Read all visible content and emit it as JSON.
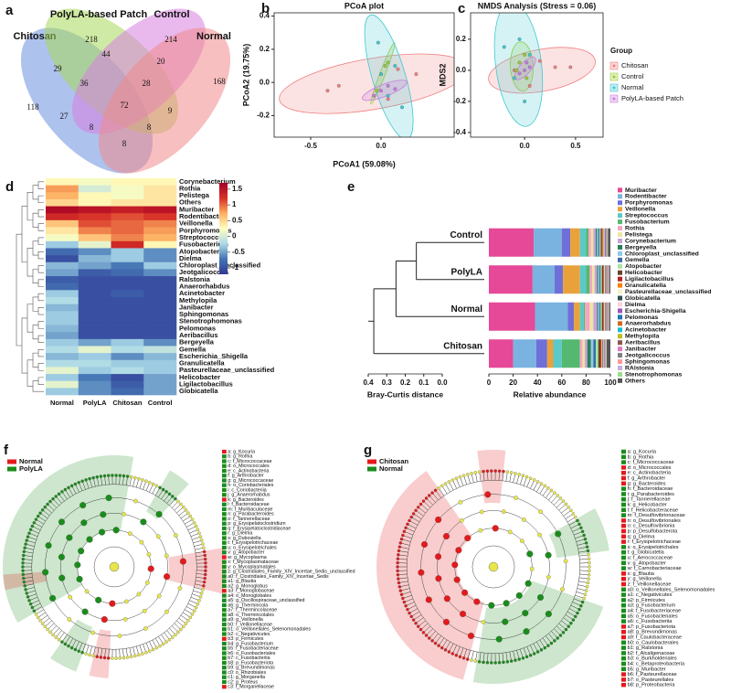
{
  "chart_data": [
    {
      "type": "venn",
      "panel": "a",
      "sets": [
        "Chitosan",
        "PolyLA-based Patch",
        "Control",
        "Normal"
      ],
      "colors": [
        "#6c8fe0",
        "#a8d85a",
        "#d77fe0",
        "#f08a8a"
      ],
      "values": [
        118,
        218,
        214,
        168,
        29,
        44,
        20,
        36,
        28,
        27,
        72,
        9,
        8,
        8,
        8
      ]
    },
    {
      "type": "scatter",
      "panel": "b",
      "title": "PCoA plot",
      "xlabel": "PCoA1 (59.08%)",
      "ylabel": "PCoA2 (19.75%)",
      "xlim": [
        -0.76,
        0.52
      ],
      "ylim": [
        -0.33,
        0.42
      ],
      "xticks": [
        -0.5,
        {
          "value": 0,
          "label": "0.0"
        }
      ],
      "yticks": [
        -0.2,
        {
          "value": 0,
          "label": "0.0"
        },
        0.2,
        0.4
      ],
      "series": [
        {
          "color": "#f08080",
          "x": [
            -0.38,
            -0.3,
            0.12,
            0.05,
            0.25
          ],
          "y": [
            -0.05,
            -0.02,
            0.08,
            -0.1,
            0.05
          ]
        },
        {
          "color": "#9acd32",
          "x": [
            0.0,
            0.03,
            -0.03,
            0.05
          ],
          "y": [
            0.05,
            0.1,
            -0.05,
            0.12
          ]
        },
        {
          "color": "#40c8d0",
          "x": [
            0.0,
            0.05,
            -0.02,
            0.1,
            0.15
          ],
          "y": [
            0.05,
            -0.08,
            0.24,
            0.1,
            -0.15
          ]
        },
        {
          "color": "#c77ce0",
          "x": [
            0.0,
            0.05,
            -0.05,
            0.1
          ],
          "y": [
            -0.05,
            -0.02,
            -0.08,
            -0.04
          ]
        }
      ]
    },
    {
      "type": "scatter",
      "panel": "c",
      "title": "NMDS Analysis (Stress = 0.06)",
      "ylabel": "MDS2",
      "legend_title": "Group",
      "xlim": [
        -0.53,
        0.77
      ],
      "ylim": [
        -0.43,
        0.37
      ],
      "xticks": [
        {
          "value": 0,
          "label": "0.0"
        },
        0.5
      ],
      "yticks": [
        -0.4,
        -0.2,
        {
          "value": 0,
          "label": "0.0"
        },
        0.2
      ],
      "series": [
        {
          "name": "Chitosan",
          "color": "#f08080",
          "x": [
            0.3,
            0.45,
            -0.1,
            0.05,
            0.15
          ],
          "y": [
            0.02,
            0.02,
            0.0,
            -0.1,
            0.06
          ]
        },
        {
          "name": "Control",
          "color": "#9acd32",
          "x": [
            -0.05,
            0.0,
            0.02,
            -0.08
          ],
          "y": [
            0.05,
            0.1,
            -0.05,
            0.0
          ]
        },
        {
          "name": "Normal",
          "color": "#40c8d0",
          "x": [
            -0.2,
            0.0,
            -0.1,
            0.05,
            -0.05
          ],
          "y": [
            0.15,
            -0.2,
            -0.05,
            0.1,
            0.2
          ]
        },
        {
          "name": "PolyLA-based Patch",
          "color": "#c77ce0",
          "x": [
            0.0,
            0.05,
            -0.05,
            0.02
          ],
          "y": [
            0.0,
            0.02,
            -0.02,
            0.05
          ]
        }
      ]
    },
    {
      "type": "heatmap",
      "panel": "d",
      "columns": [
        "Normal",
        "PolyLA",
        "Chitosan",
        "Control"
      ],
      "rows": [
        "Corynebacterium",
        "Rothia",
        "Pelistega",
        "Others",
        "Muribacter",
        "Rodentibacter",
        "Veillonella",
        "Porphyromonas",
        "Streptococcus",
        "Fusobacterium",
        "Atopobacter",
        "Dielma",
        "Chloroplast_unclassified",
        "Jeotgalicoccus",
        "Ralstonia",
        "Anaerorhabdus",
        "Acinetobacter",
        "Methylopila",
        "Janibacter",
        "Sphingomonas",
        "Stenotrophomonas",
        "Pelomonas",
        "Aeribacillus",
        "Bergeyella",
        "Gemella",
        "Escherichia_Shigella",
        "Granulicatella",
        "Pasteurellaceae_unclassified",
        "Helicobacter",
        "Ligilactobacillus",
        "Globicatella"
      ],
      "values": [
        [
          0.3,
          0.2,
          0.3,
          0.3
        ],
        [
          0.8,
          0.0,
          0.2,
          0.4
        ],
        [
          0.7,
          0.3,
          0.2,
          0.4
        ],
        [
          0.5,
          0.3,
          0.4,
          0.4
        ],
        [
          1.6,
          1.5,
          1.4,
          1.5
        ],
        [
          1.3,
          1.2,
          1.1,
          1.2
        ],
        [
          0.6,
          1.1,
          1.0,
          0.9
        ],
        [
          0.4,
          0.9,
          1.0,
          0.8
        ],
        [
          0.2,
          0.6,
          0.9,
          0.7
        ],
        [
          -0.3,
          0.1,
          1.3,
          0.3
        ],
        [
          -0.8,
          -0.6,
          -0.3,
          -0.6
        ],
        [
          -1,
          -0.4,
          -0.3,
          -0.6
        ],
        [
          -0.4,
          -0.5,
          -0.7,
          -0.3
        ],
        [
          -0.5,
          -0.9,
          -0.8,
          -0.6
        ],
        [
          -0.9,
          -1,
          -1,
          -1
        ],
        [
          -0.8,
          -1,
          -1,
          -1
        ],
        [
          -0.3,
          -1,
          -0.9,
          -1
        ],
        [
          -0.2,
          -1,
          -1,
          -1
        ],
        [
          -0.4,
          -1,
          -1,
          -1
        ],
        [
          -0.3,
          -1,
          -1,
          -1
        ],
        [
          -0.3,
          -1,
          -1,
          -1
        ],
        [
          -0.4,
          -1,
          -1,
          -1
        ],
        [
          -0.5,
          -1,
          -1,
          -1
        ],
        [
          -0.3,
          -0.5,
          -0.3,
          -0.6
        ],
        [
          -0.2,
          0.1,
          -0.2,
          -0.1
        ],
        [
          -0.4,
          -0.3,
          -0.6,
          -0.4
        ],
        [
          -0.2,
          -0.2,
          -0.3,
          -0.3
        ],
        [
          0.1,
          -0.3,
          -0.2,
          -0.3
        ],
        [
          -0.3,
          -0.7,
          -1,
          -0.5
        ],
        [
          0.1,
          -0.6,
          -0.9,
          -0.5
        ],
        [
          -0.3,
          -0.6,
          -0.8,
          -0.5
        ]
      ],
      "zlim": [
        -1.2,
        1.7
      ],
      "zticks": [
        1.5,
        1,
        0.5,
        0,
        -0.5,
        -1
      ],
      "colors": [
        "#313695",
        "#4575b4",
        "#abd9e9",
        "#ffffbf",
        "#fdae61",
        "#d73027",
        "#a50026"
      ]
    },
    {
      "type": "stacked_barh",
      "panel": "e",
      "xlabel": "Relative abundance",
      "xlim": [
        0,
        100
      ],
      "xticks": [
        0,
        20,
        40,
        60,
        80,
        100
      ],
      "categories": [
        "Control",
        "PolyLA",
        "Normal",
        "Chitosan"
      ],
      "dendrogram_label": "Bray-Curtis distance",
      "dendrogram_lim": [
        0.4,
        0
      ],
      "dendrogram_ticks": [
        0.4,
        0.3,
        0.2,
        0.1,
        {
          "value": 0,
          "label": "0.0"
        }
      ],
      "merge_heights": [
        0.14,
        0.25,
        0.37
      ],
      "series": [
        {
          "name": "Muribacter",
          "color": "#e64997",
          "values": [
            37,
            36,
            38,
            20
          ]
        },
        {
          "name": "Rodentibacter",
          "color": "#7ab3e0",
          "values": [
            23,
            18,
            27,
            19
          ]
        },
        {
          "name": "Porphyromonas",
          "color": "#6f6fd8",
          "values": [
            7,
            7,
            5,
            9
          ]
        },
        {
          "name": "Veillonella",
          "color": "#e9a23b",
          "values": [
            8,
            14,
            5,
            5
          ]
        },
        {
          "name": "Streptococcus",
          "color": "#5cc8c8",
          "values": [
            5,
            5,
            3,
            7
          ]
        },
        {
          "name": "Fusobacterium",
          "color": "#55b870",
          "values": [
            2,
            3,
            1,
            15
          ]
        },
        {
          "name": "Rothia",
          "color": "#f5a6c0",
          "values": [
            2,
            2,
            4,
            2
          ]
        },
        {
          "name": "Pelistega",
          "color": "#efe4a0",
          "values": [
            2,
            2,
            3,
            2
          ]
        },
        {
          "name": "Corynebacterium",
          "color": "#c8a2d8",
          "values": [
            2,
            2,
            3,
            2
          ]
        },
        {
          "name": "Bergeyella",
          "color": "#2e7d5b",
          "values": [
            1,
            1,
            1,
            3
          ]
        },
        {
          "name": "Chloroplast_unclassified",
          "color": "#8ecae6",
          "values": [
            1,
            1,
            1,
            2
          ]
        },
        {
          "name": "Gemella",
          "color": "#3a6ea5",
          "values": [
            1,
            1,
            1,
            2
          ]
        },
        {
          "name": "Atopobacter",
          "color": "#a8e6a1",
          "values": [
            1,
            1,
            1,
            2
          ]
        },
        {
          "name": "Helicobacter",
          "color": "#6b4226",
          "values": [
            1,
            1,
            1,
            2
          ]
        },
        {
          "name": "Ligilactobacillus",
          "color": "#b22222",
          "values": [
            0.5,
            0.5,
            0.5,
            0.5
          ]
        },
        {
          "name": "Granulicatella",
          "color": "#ff7f0e",
          "values": [
            0.5,
            0.5,
            0.5,
            0.5
          ]
        },
        {
          "name": "Pasteurellaceae_unclassified",
          "color": "#f5f0c8",
          "values": [
            0.5,
            0.5,
            0.5,
            0.5
          ]
        },
        {
          "name": "Globicatella",
          "color": "#2f4f4f",
          "values": [
            0.5,
            0.5,
            0.5,
            0.5
          ]
        },
        {
          "name": "Dielma",
          "color": "#ffd1dc",
          "values": [
            0.5,
            0.5,
            0.5,
            0.5
          ]
        },
        {
          "name": "Escherichia-Shigella",
          "color": "#9b59b6",
          "values": [
            0.5,
            0.5,
            0.5,
            0.5
          ]
        },
        {
          "name": "Pelomonas",
          "color": "#1f77b4",
          "values": [
            0.2,
            0.2,
            0.2,
            0.2
          ]
        },
        {
          "name": "Anaerorhabdus",
          "color": "#d2691e",
          "values": [
            0.2,
            0.2,
            0.2,
            0.2
          ]
        },
        {
          "name": "Acinetobacter",
          "color": "#17becf",
          "values": [
            0.2,
            0.2,
            0.2,
            0.2
          ]
        },
        {
          "name": "Methylopila",
          "color": "#bcbd22",
          "values": [
            0.2,
            0.2,
            0.2,
            0.2
          ]
        },
        {
          "name": "Aeribacillus",
          "color": "#8c564b",
          "values": [
            0.2,
            0.2,
            0.2,
            0.2
          ]
        },
        {
          "name": "Janibacter",
          "color": "#e377c2",
          "values": [
            0.2,
            0.2,
            0.2,
            0.2
          ]
        },
        {
          "name": "Jeotgalicoccus",
          "color": "#7f7f7f",
          "values": [
            0.2,
            0.2,
            0.2,
            0.2
          ]
        },
        {
          "name": "Sphingomonas",
          "color": "#ff9896",
          "values": [
            0.2,
            0.2,
            0.2,
            0.2
          ]
        },
        {
          "name": "RAlstonia",
          "color": "#c5b0d5",
          "values": [
            0.2,
            0.2,
            0.2,
            0.2
          ]
        },
        {
          "name": "Stenotrophomonas",
          "color": "#98df8a",
          "values": [
            0.2,
            0.2,
            0.2,
            0.2
          ]
        },
        {
          "name": "Others",
          "color": "#555555",
          "values": [
            2,
            1,
            1,
            3
          ]
        }
      ]
    },
    {
      "type": "cladogram",
      "panel": "f",
      "legend": [
        {
          "name": "Normal",
          "color": "#e31a1c"
        },
        {
          "name": "PolyLA",
          "color": "#1a8c1a"
        }
      ],
      "taxa": [
        "a: g_Kocuria",
        "b: g_Rothia",
        "c: f_Micrococcaceae",
        "d: o_Micrococcales",
        "e: c_Actinobacteria",
        "f: g_Arthrobacter",
        "g: g_Micrococcaceae",
        "h: o_Coriobacteriales",
        "i: c_Coriobacteriia",
        "j: g_Anaerorhabdus",
        "k: g_Bacteroides",
        "l: f_Bacteroidaceae",
        "m: f_Muribaculaceae",
        "n: g_Parabacteroides",
        "o: f_Tannerellaceae",
        "p: g_Erysipelatoclostridium",
        "q: f_Erysipelatoclostridiaceae",
        "r: g_Dielma",
        "s: g_Dubosiella",
        "t: f_Erysipelotrichaceae",
        "u: o_Erysipelotrichales",
        "v: g_Atopobacter",
        "w: g_Mycoplasma",
        "x: f_Mycoplasmataceae",
        "y: o_Mycoplasmatales",
        "z: g_Clostridiales_Family_XIV_Incertae_Sedis_unclassified",
        "a0: f_Clostridiales_Family_XIV_Incertae_Sedis",
        "a1: g_Blautia",
        "a2: g_Monoglobus",
        "a3: f_Monoglobaceae",
        "a4: o_Monoglobales",
        "a5: g_Oscillospiraceae_unclassified",
        "a6: g_Thermincola",
        "a7: f_Thermincolaceae",
        "a8: o_Thermincolales",
        "a9: g_Veillonella",
        "b0: f_Veillonellaceae",
        "b1: o_Veillonellales_Selenomonadales",
        "b2: c_Negativicutes",
        "b3: p_Firmicutes",
        "b4: g_Fusobacterium",
        "b5: f_Fusobacteriaceae",
        "b6: o_Fusobacteriales",
        "b7: c_Fusobacteriia",
        "b8: p_Fusobacteriota",
        "b9: g_Brevundimonas",
        "c0: o_Rhizobiales",
        "c1: g_Morganella",
        "c2: g_Proteus",
        "c3: f_Morganellaceae"
      ]
    },
    {
      "type": "cladogram",
      "panel": "g",
      "legend": [
        {
          "name": "Chitosan",
          "color": "#e31a1c"
        },
        {
          "name": "Normal",
          "color": "#1a8c1a"
        }
      ],
      "taxa": [
        "a: g_Kocuria",
        "b: g_Rothia",
        "c: f_Micrococcaceae",
        "d: o_Micrococcales",
        "e: c_Actinobacteria",
        "f: g_Arthrobacter",
        "g: g_Bacteroides",
        "h: f_Bacteroidaceae",
        "i: g_Parabacteroides",
        "j: f_Tannerellaceae",
        "k: g_Helicobacter",
        "l: f_Helicobacteraceae",
        "m: f_Desulfovibrionaceae",
        "n: o_Desulfovibrionales",
        "o: c_Desulfovibrionia",
        "p: p_Desulfobacterota",
        "q: g_Dielma",
        "r: f_Erysipelotrichaceae",
        "s: o_Erysipelotrichales",
        "t: g_Globicatella",
        "u: f_Aerococcaceae",
        "v: g_Atopobacter",
        "w: f_Carnobacteriaceae",
        "x: g_Blautia",
        "y: g_Veillonella",
        "z: f_Veillonellaceae",
        "a0: o_Veillonellales_Selenomonadales",
        "a1: c_Negativicutes",
        "a2: p_Firmicutes",
        "a3: g_Fusobacterium",
        "a4: f_Fusobacteriaceae",
        "a5: o_Fusobacteriales",
        "a6: c_Fusobacteriia",
        "a7: p_Fusobacteriota",
        "a8: g_Brevundimonas",
        "a9: f_Caulobacteraceae",
        "b0: o_Caulobacterales",
        "b1: g_Ralstonia",
        "b2: f_Alcaligenaceae",
        "b3: o_Burkholderiales",
        "b4: c_Betaproteobacteria",
        "b5: g_Muribacter",
        "b6: f_Pasteurellaceae",
        "b7: o_Pasteurellales",
        "b8: p_Proteobacteria"
      ]
    }
  ]
}
